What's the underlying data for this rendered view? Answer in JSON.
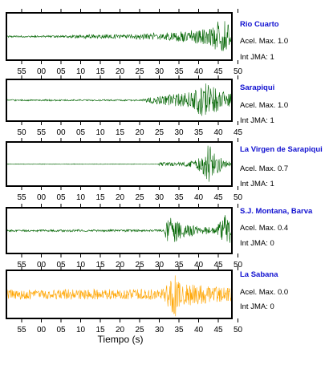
{
  "chart_data": {
    "type": "line",
    "xlabel": "Tiempo (s)",
    "accel_label": "Acel. Max.",
    "jma_label": "Int JMA:",
    "panels": [
      {
        "station": "Rio Cuarto",
        "accel": "1.0",
        "jma": "1",
        "color": "#006400",
        "tick_labels": [
          "55",
          "00",
          "05",
          "10",
          "15",
          "20",
          "25",
          "30",
          "35",
          "40",
          "45",
          "50"
        ],
        "envelope": [
          [
            0,
            0.04
          ],
          [
            0.28,
            0.05
          ],
          [
            0.3,
            0.09
          ],
          [
            0.55,
            0.1
          ],
          [
            0.6,
            0.14
          ],
          [
            0.7,
            0.18
          ],
          [
            0.8,
            0.26
          ],
          [
            0.86,
            0.35
          ],
          [
            0.9,
            0.45
          ],
          [
            0.93,
            0.62
          ],
          [
            0.96,
            1.0
          ],
          [
            0.98,
            0.7
          ],
          [
            1,
            0.55
          ]
        ]
      },
      {
        "station": "Sarapiqui",
        "accel": "1.0",
        "jma": "1",
        "color": "#006400",
        "tick_labels": [
          "50",
          "55",
          "00",
          "05",
          "10",
          "15",
          "20",
          "25",
          "30",
          "35",
          "40",
          "45"
        ],
        "envelope": [
          [
            0,
            0.04
          ],
          [
            0.6,
            0.04
          ],
          [
            0.65,
            0.18
          ],
          [
            0.72,
            0.28
          ],
          [
            0.78,
            0.38
          ],
          [
            0.84,
            0.55
          ],
          [
            0.88,
            1.0
          ],
          [
            0.92,
            0.7
          ],
          [
            0.96,
            0.45
          ],
          [
            1,
            0.35
          ]
        ]
      },
      {
        "station": "La Virgen de Sarapiqui",
        "accel": "0.7",
        "jma": "1",
        "color": "#006400",
        "tick_labels": [
          "55",
          "00",
          "05",
          "10",
          "15",
          "20",
          "25",
          "30",
          "35",
          "40",
          "45",
          "50"
        ],
        "envelope": [
          [
            0,
            0.015
          ],
          [
            0.67,
            0.015
          ],
          [
            0.68,
            0.09
          ],
          [
            0.78,
            0.09
          ],
          [
            0.84,
            0.2
          ],
          [
            0.88,
            0.6
          ],
          [
            0.9,
            1.0
          ],
          [
            0.93,
            0.6
          ],
          [
            0.97,
            0.2
          ],
          [
            1,
            0.1
          ]
        ]
      },
      {
        "station": "S.J. Montana, Barva",
        "accel": "0.4",
        "jma": "0",
        "color": "#006400",
        "tick_labels": [
          "55",
          "00",
          "05",
          "10",
          "15",
          "20",
          "25",
          "30",
          "35",
          "40",
          "45",
          "50"
        ],
        "envelope": [
          [
            0,
            0.05
          ],
          [
            0.7,
            0.05
          ],
          [
            0.71,
            0.5
          ],
          [
            0.74,
            0.65
          ],
          [
            0.78,
            0.32
          ],
          [
            0.86,
            0.2
          ],
          [
            0.93,
            0.16
          ],
          [
            0.96,
            0.6
          ],
          [
            0.98,
            0.85
          ],
          [
            1,
            0.5
          ]
        ]
      },
      {
        "station": "La Sabana",
        "accel": "0.0",
        "jma": "0",
        "color": "#ffa500",
        "tick_labels": [
          "55",
          "00",
          "05",
          "10",
          "15",
          "20",
          "25",
          "30",
          "35",
          "40",
          "45",
          "50"
        ],
        "envelope": [
          [
            0,
            0.22
          ],
          [
            0.7,
            0.24
          ],
          [
            0.72,
            0.6
          ],
          [
            0.75,
            1.0
          ],
          [
            0.78,
            0.62
          ],
          [
            0.82,
            0.5
          ],
          [
            0.87,
            0.42
          ],
          [
            0.93,
            0.35
          ],
          [
            1,
            0.3
          ]
        ]
      }
    ]
  }
}
